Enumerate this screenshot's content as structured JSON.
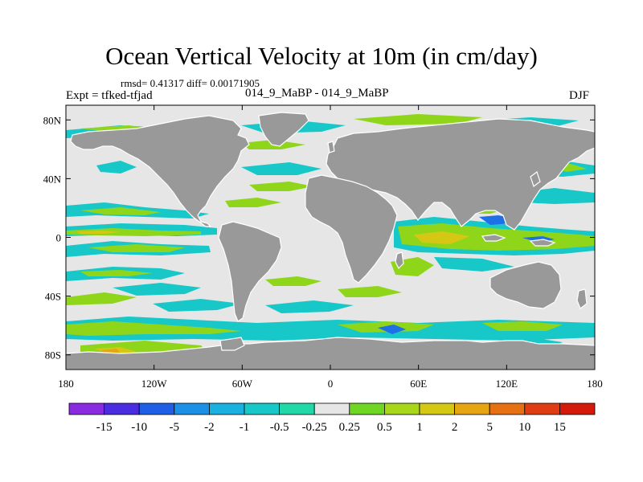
{
  "title": "Ocean Vertical Velocity at 10m (in cm/day)",
  "stats_text": "rmsd= 0.41317 diff= 0.00171905",
  "experiment_text": "Expt = tfked-tfjad",
  "cases_text": "014_9_MaBP - 014_9_MaBP",
  "season": "DJF",
  "x_ticks": [
    "180",
    "120W",
    "60W",
    "0",
    "60E",
    "120E",
    "180"
  ],
  "y_ticks": [
    "80N",
    "40N",
    "0",
    "40S",
    "80S"
  ],
  "colorbar": {
    "labels": [
      "-15",
      "-10",
      "-5",
      "-2",
      "-1",
      "-0.5",
      "-0.25",
      "0.25",
      "0.5",
      "1",
      "2",
      "5",
      "10",
      "15"
    ],
    "colors": [
      "#8a2be2",
      "#4a2de0",
      "#1f5fe6",
      "#1c8fe6",
      "#1ab0e0",
      "#18c8c8",
      "#20d8a8",
      "#e6e6e6",
      "#6fd624",
      "#a8d61a",
      "#d4c814",
      "#e6a614",
      "#e67014",
      "#e03c14",
      "#d41a0a"
    ]
  },
  "colors": {
    "land": "#999999",
    "ocean_neutral": "#e6e6e6",
    "coastline": "#ffffff",
    "cyan": "#18c8c8",
    "green": "#8fd61a",
    "yellow": "#d4c814",
    "blue": "#1f6fe6",
    "orange": "#e6a614"
  }
}
